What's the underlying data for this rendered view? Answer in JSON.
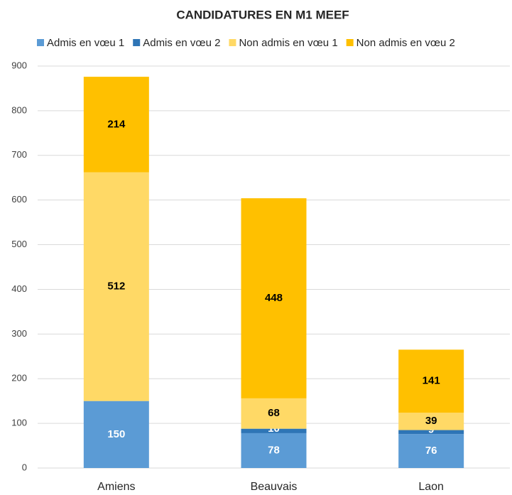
{
  "chart_data": {
    "type": "stacked_bar",
    "title": "CANDIDATURES EN M1 MEEF",
    "categories": [
      "Amiens",
      "Beauvais",
      "Laon"
    ],
    "series": [
      {
        "name": "Admis en vœu 1",
        "color": "#5b9bd5",
        "values": [
          150,
          78,
          76
        ]
      },
      {
        "name": "Admis en vœu 2",
        "color": "#2e75b6",
        "values": [
          null,
          10,
          9
        ]
      },
      {
        "name": "Non admis en vœu 1",
        "color": "#ffd966",
        "values": [
          512,
          68,
          39
        ]
      },
      {
        "name": "Non admis en vœu 2",
        "color": "#ffc000",
        "values": [
          214,
          448,
          141
        ]
      }
    ],
    "ylim": [
      0,
      900
    ],
    "yticks": [
      0,
      100,
      200,
      300,
      400,
      500,
      600,
      700,
      800,
      900
    ],
    "grid": true,
    "legend": "top"
  }
}
